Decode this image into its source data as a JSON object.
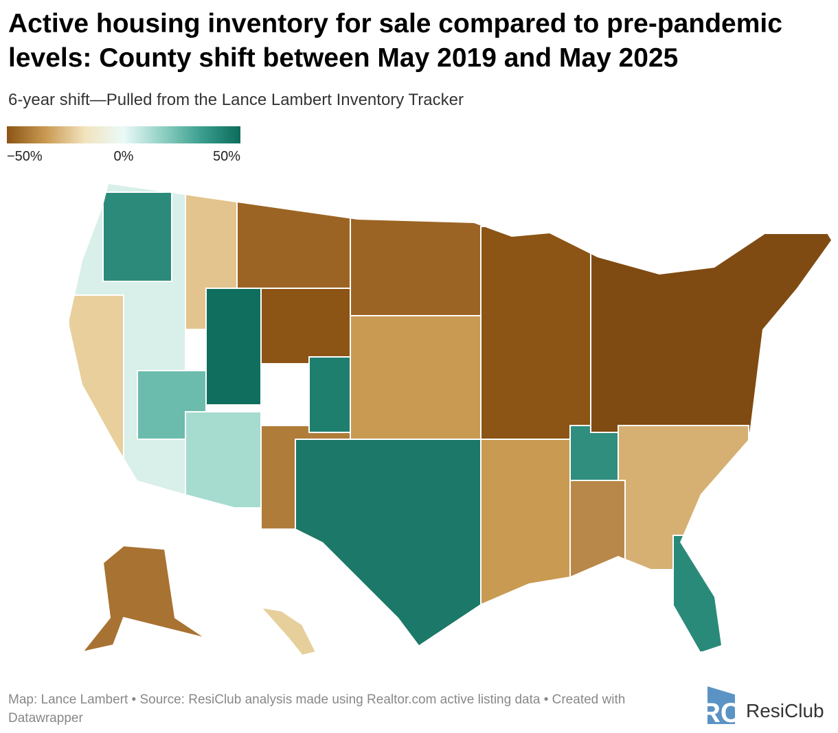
{
  "header": {
    "title": "Active housing inventory for sale compared to pre-pandemic levels: County shift between May 2019 and May 2025",
    "subtitle": "6-year shift—Pulled from the Lance Lambert Inventory Tracker"
  },
  "legend": {
    "range": [
      -50,
      50
    ],
    "colors": [
      "#8c5415",
      "#c99a52",
      "#f2e3bd",
      "#eafaf8",
      "#8fd0c3",
      "#3a9e8e",
      "#0d6b5b"
    ],
    "ticks": [
      {
        "value": -50,
        "label": "−50%"
      },
      {
        "value": 0,
        "label": "0%"
      },
      {
        "value": 50,
        "label": "50%"
      }
    ]
  },
  "footer": {
    "credit": "Map: Lance Lambert • Source: ResiClub analysis made using Realtor.com active listing data • Created with Datawrapper",
    "brand": "ResiClub"
  }
}
